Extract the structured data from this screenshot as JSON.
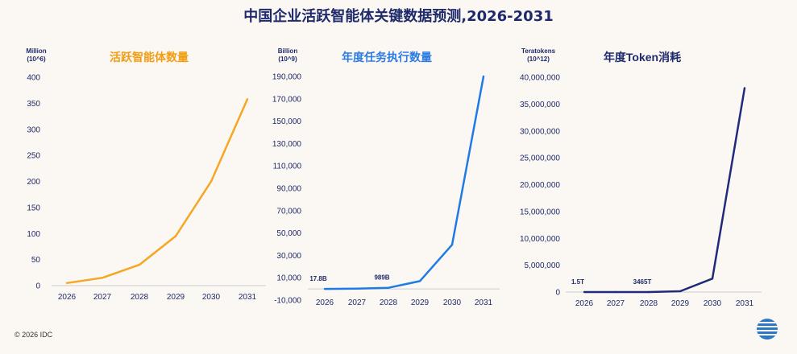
{
  "page": {
    "title": "中国企业活跃智能体关键数据预测,2026-2031",
    "footer": "© 2026 IDC",
    "logo_icon": "idc-globe-icon"
  },
  "chart_data": [
    {
      "type": "line",
      "title": "活跃智能体数量",
      "title_color": "#f39c12",
      "unit_label": [
        "Million",
        "(10^6)"
      ],
      "line_color": "#f5a623",
      "x": [
        "2026",
        "2027",
        "2028",
        "2029",
        "2030",
        "2031"
      ],
      "y": [
        5,
        15,
        40,
        95,
        200,
        358
      ],
      "yticks": [
        0,
        50,
        100,
        150,
        200,
        250,
        300,
        350,
        400
      ],
      "tick_labels": [
        "0",
        "50",
        "100",
        "150",
        "200",
        "250",
        "300",
        "350",
        "400"
      ],
      "ylim": [
        0,
        400
      ],
      "grid": false,
      "annotations": []
    },
    {
      "type": "line",
      "title": "年度任务执行数量",
      "title_color": "#2b7be4",
      "unit_label": [
        "Billion",
        "(10^9)"
      ],
      "line_color": "#1e7be6",
      "x": [
        "2026",
        "2027",
        "2028",
        "2029",
        "2030",
        "2031"
      ],
      "y": [
        17.8,
        200,
        989,
        7000,
        39500,
        190000
      ],
      "yticks": [
        -10000,
        10000,
        30000,
        50000,
        70000,
        90000,
        110000,
        130000,
        150000,
        170000,
        190000
      ],
      "tick_labels": [
        "-10,000",
        "10,000",
        "30,000",
        "50,000",
        "70,000",
        "90,000",
        "110,000",
        "130,000",
        "150,000",
        "170,000",
        "190,000"
      ],
      "ylim": [
        -10000,
        190000
      ],
      "grid": false,
      "annotations": [
        {
          "x": "2026",
          "y": 17.8,
          "text": "17.8B"
        },
        {
          "x": "2028",
          "y": 989,
          "text": "989B"
        }
      ]
    },
    {
      "type": "line",
      "title": "年度Token消耗",
      "title_color": "#1f2a6b",
      "unit_label": [
        "Teratokens",
        "(10^12)"
      ],
      "line_color": "#1f2a7a",
      "x": [
        "2026",
        "2027",
        "2028",
        "2029",
        "2030",
        "2031"
      ],
      "y": [
        1.5,
        60,
        3465,
        150000,
        2500000,
        38000000
      ],
      "yticks": [
        0,
        5000000,
        10000000,
        15000000,
        20000000,
        25000000,
        30000000,
        35000000,
        40000000
      ],
      "tick_labels": [
        "0",
        "5,000,000",
        "10,000,000",
        "15,000,000",
        "20,000,000",
        "25,000,000",
        "30,000,000",
        "35,000,000",
        "40,000,000"
      ],
      "ylim": [
        0,
        40000000
      ],
      "grid": false,
      "annotations": [
        {
          "x": "2026",
          "y": 1.5,
          "text": "1.5T"
        },
        {
          "x": "2028",
          "y": 3465,
          "text": "3465T"
        }
      ]
    }
  ]
}
